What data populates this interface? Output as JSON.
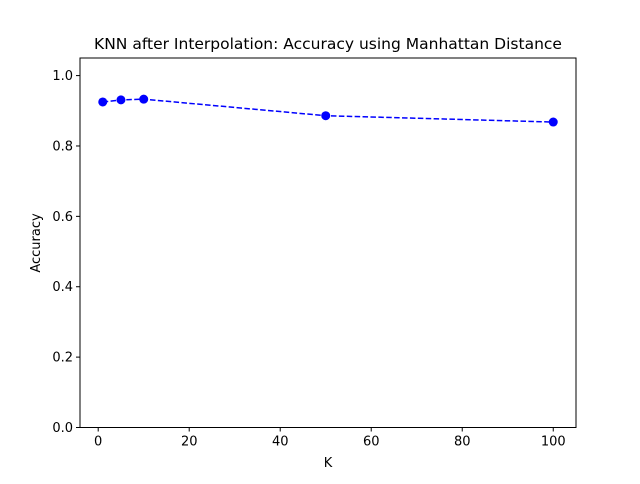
{
  "chart_data": {
    "type": "line",
    "title": "KNN after Interpolation: Accuracy using Manhattan Distance",
    "xlabel": "K",
    "ylabel": "Accuracy",
    "xlim": [
      -4,
      105
    ],
    "ylim": [
      0.0,
      1.05
    ],
    "x_ticks": [
      0,
      20,
      40,
      60,
      80,
      100
    ],
    "x_tick_labels": [
      "0",
      "20",
      "40",
      "60",
      "80",
      "100"
    ],
    "y_ticks": [
      0.0,
      0.2,
      0.4,
      0.6,
      0.8,
      1.0
    ],
    "y_tick_labels": [
      "0.0",
      "0.2",
      "0.4",
      "0.6",
      "0.8",
      "1.0"
    ],
    "grid": false,
    "series": [
      {
        "x": [
          1,
          5,
          10,
          50,
          100
        ],
        "y": [
          0.925,
          0.931,
          0.933,
          0.886,
          0.868
        ],
        "color": "#0000ff",
        "line_style": "dashed",
        "marker": "circle"
      }
    ]
  }
}
